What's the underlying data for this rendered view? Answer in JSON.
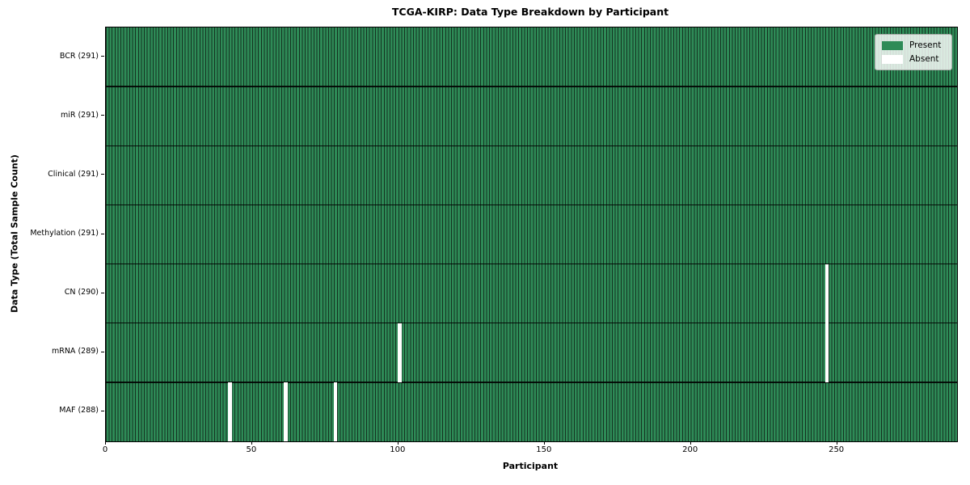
{
  "chart_data": {
    "type": "heatmap",
    "title": "TCGA-KIRP: Data Type Breakdown by Participant",
    "xlabel": "Participant",
    "ylabel": "Data Type (Total Sample Count)",
    "x_range": [
      0,
      291
    ],
    "n_participants": 291,
    "x_ticks": [
      0,
      50,
      100,
      150,
      200,
      250
    ],
    "rows": [
      {
        "label": "BCR (291)",
        "data_type": "BCR",
        "present_count": 291,
        "absent_participants": []
      },
      {
        "label": "miR (291)",
        "data_type": "miR",
        "present_count": 291,
        "absent_participants": []
      },
      {
        "label": "Clinical (291)",
        "data_type": "Clinical",
        "present_count": 291,
        "absent_participants": []
      },
      {
        "label": "Methylation (291)",
        "data_type": "Methylation",
        "present_count": 291,
        "absent_participants": []
      },
      {
        "label": "CN (290)",
        "data_type": "CN",
        "present_count": 290,
        "absent_participants": [
          246
        ]
      },
      {
        "label": "mRNA (289)",
        "data_type": "mRNA",
        "present_count": 289,
        "absent_participants": [
          100,
          246
        ]
      },
      {
        "label": "MAF (288)",
        "data_type": "MAF",
        "present_count": 288,
        "absent_participants": [
          42,
          61,
          78
        ]
      }
    ],
    "legend": {
      "position": "upper right",
      "items": [
        {
          "label": "Present",
          "color": "#2e8b57"
        },
        {
          "label": "Absent",
          "color": "#ffffff"
        }
      ]
    },
    "colors": {
      "present": "#2e8b57",
      "absent": "#ffffff",
      "column_edge": "#143120",
      "row_separator": "#000000",
      "plot_border": "#000000",
      "background": "#ffffff"
    },
    "grid": false
  }
}
